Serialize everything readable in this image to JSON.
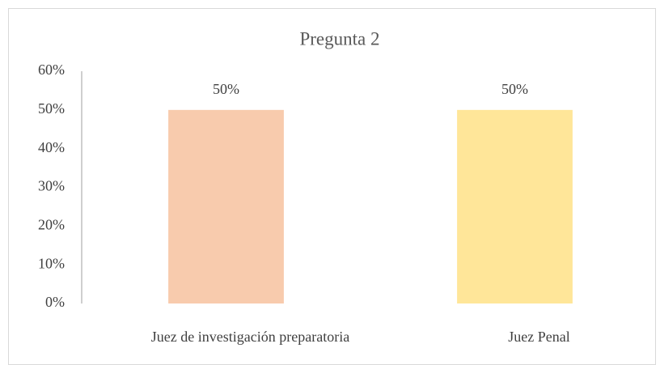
{
  "chart_data": {
    "type": "bar",
    "title": "Pregunta 2",
    "categories": [
      "Juez de investigación preparatoria",
      "Juez Penal"
    ],
    "values": [
      50,
      50
    ],
    "value_labels": [
      "50%",
      "50%"
    ],
    "colors": [
      "#f8cbad",
      "#ffe699"
    ],
    "ylim": [
      0,
      60
    ],
    "yticks": [
      {
        "value": 0,
        "label": "0%"
      },
      {
        "value": 10,
        "label": "10%"
      },
      {
        "value": 20,
        "label": "20%"
      },
      {
        "value": 30,
        "label": "30%"
      },
      {
        "value": 40,
        "label": "40%"
      },
      {
        "value": 50,
        "label": "50%"
      },
      {
        "value": 60,
        "label": "60%"
      }
    ],
    "grid": false
  }
}
